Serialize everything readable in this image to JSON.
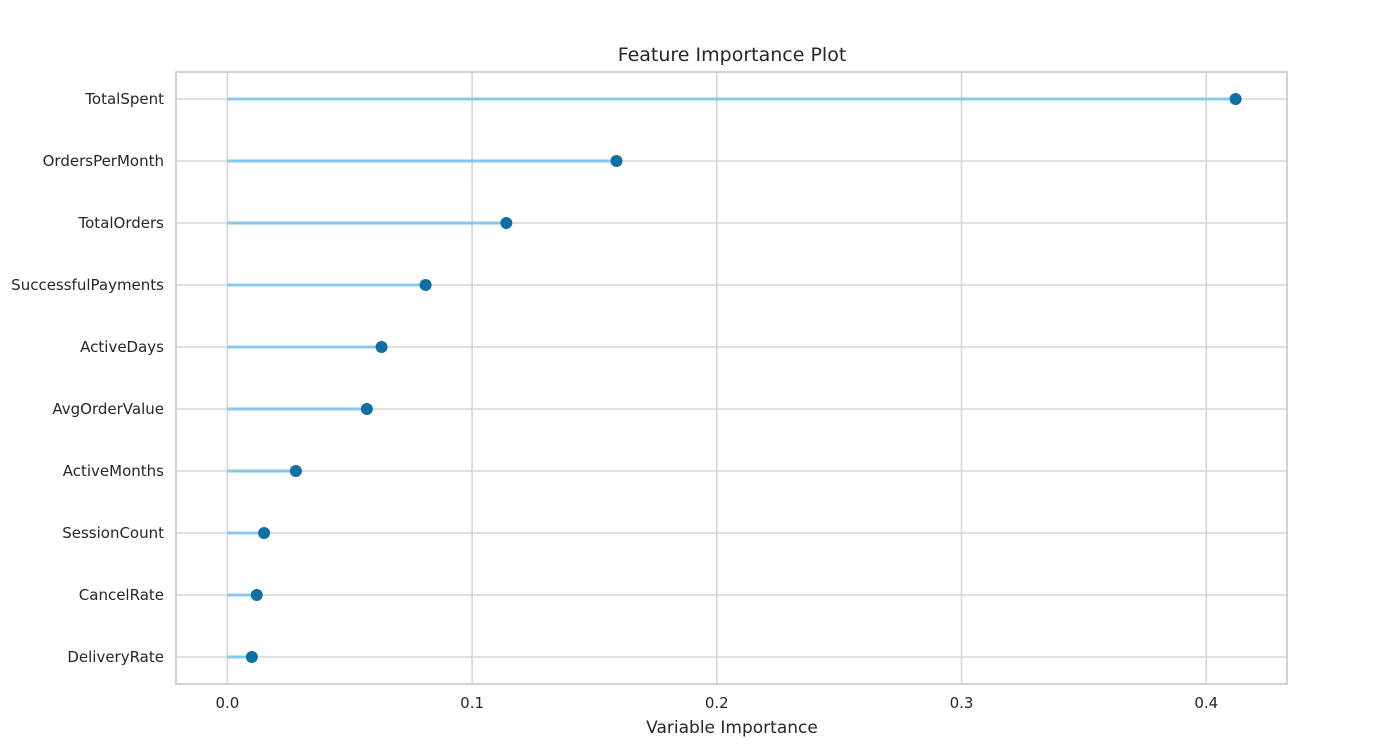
{
  "chart_data": {
    "type": "scatter",
    "subtype": "lollipop",
    "title": "Feature Importance Plot",
    "xlabel": "Variable Importance",
    "ylabel": "",
    "xlim": [
      -0.021,
      0.433
    ],
    "xticks": [
      0.0,
      0.1,
      0.2,
      0.3,
      0.4
    ],
    "xtick_labels": [
      "0.0",
      "0.1",
      "0.2",
      "0.3",
      "0.4"
    ],
    "grid": true,
    "categories": [
      "TotalSpent",
      "OrdersPerMonth",
      "TotalOrders",
      "SuccessfulPayments",
      "ActiveDays",
      "AvgOrderValue",
      "ActiveMonths",
      "SessionCount",
      "CancelRate",
      "DeliveryRate"
    ],
    "values": [
      0.412,
      0.159,
      0.114,
      0.081,
      0.063,
      0.057,
      0.028,
      0.015,
      0.012,
      0.01
    ],
    "colors": {
      "stem": "#87c9e6",
      "marker": "#0e6fa5",
      "grid": "#d5d5d5",
      "frame": "#cccccc"
    }
  }
}
